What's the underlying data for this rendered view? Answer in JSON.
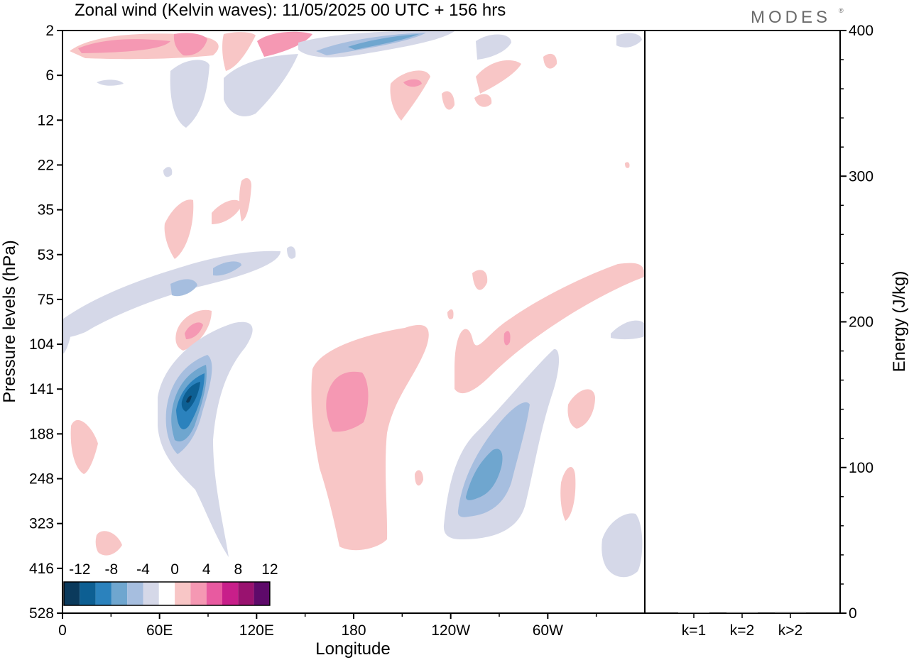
{
  "header": {
    "title": "Zonal wind (Kelvin waves):  11/05/2025  00 UTC  + 156 hrs",
    "logo": "MODES",
    "logo_mark": "®"
  },
  "chart_data": [
    {
      "type": "heatmap",
      "title": "Zonal wind (Kelvin waves):  11/05/2025  00 UTC  + 156 hrs",
      "xlabel": "Longitude",
      "ylabel": "Pressure levels (hPa)",
      "x_ticks": [
        "0",
        "60E",
        "120E",
        "180",
        "120W",
        "60W"
      ],
      "y_ticks": [
        "2",
        "6",
        "12",
        "22",
        "35",
        "53",
        "75",
        "104",
        "141",
        "188",
        "248",
        "323",
        "416",
        "528"
      ],
      "legend": {
        "position": "bottom-left",
        "labels": [
          "-12",
          "-8",
          "-4",
          "0",
          "4",
          "8",
          "12"
        ],
        "colors": [
          "#0b3a5c",
          "#0d5f93",
          "#2b82bd",
          "#6fa6cf",
          "#a6bedf",
          "#d5d8e8",
          "#ffffff",
          "#f8c6c6",
          "#f598b3",
          "#e85aa0",
          "#c81f8a",
          "#99126f",
          "#5e0a6a"
        ]
      }
    },
    {
      "type": "bar",
      "ylabel": "Energy (J/kg)",
      "categories": [
        "k=1",
        "k=2",
        "k>2"
      ],
      "values": [
        0.5,
        0.6,
        0.7
      ],
      "ylim": [
        0,
        400
      ],
      "y_ticks": [
        "0",
        "100",
        "200",
        "300",
        "400"
      ]
    }
  ]
}
